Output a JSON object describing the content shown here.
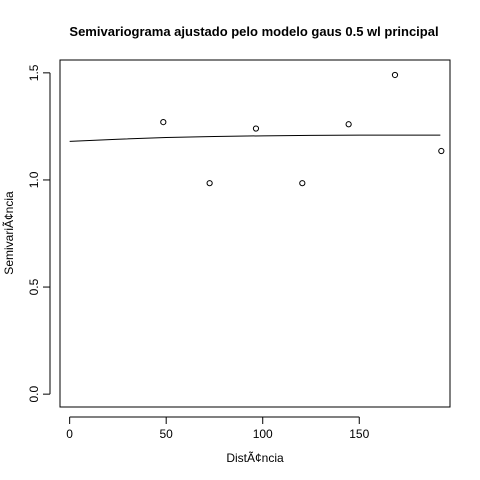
{
  "chart_data": {
    "type": "scatter",
    "title": "Semivariograma ajustado pelo modelo gaus 0.5 wl principal",
    "xlabel": "DistÃ¢ncia",
    "ylabel": "SemivariÃ¢ncia",
    "xlim": [
      -5,
      197
    ],
    "ylim": [
      -0.06,
      1.56
    ],
    "x_ticks": [
      0,
      50,
      100,
      150
    ],
    "x_tick_labels": [
      "0",
      "50",
      "100",
      "150"
    ],
    "y_ticks": [
      0.0,
      0.5,
      1.0,
      1.5
    ],
    "y_tick_labels": [
      "0.0",
      "0.5",
      "1.0",
      "1.5"
    ],
    "grid": false,
    "series": [
      {
        "kind": "points",
        "marker": "open-circle",
        "x": [
          48.5,
          72.5,
          96.5,
          120.5,
          144.5,
          168.5,
          192.5
        ],
        "y": [
          1.27,
          0.985,
          1.24,
          0.985,
          1.26,
          1.49,
          1.135
        ]
      },
      {
        "kind": "line",
        "x": [
          0,
          25,
          50,
          75,
          100,
          125,
          150,
          175,
          192
        ],
        "y": [
          1.18,
          1.19,
          1.198,
          1.203,
          1.206,
          1.208,
          1.209,
          1.209,
          1.209
        ]
      }
    ]
  }
}
